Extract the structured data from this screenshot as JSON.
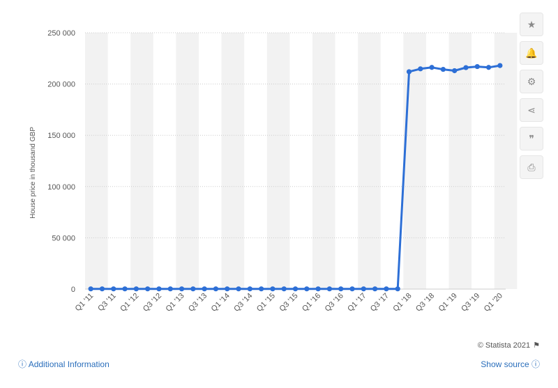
{
  "chart_data": {
    "type": "line",
    "ylabel": "House price in thousand GBP",
    "xlabel": "",
    "ylim": [
      0,
      250000
    ],
    "yticks": [
      0,
      50000,
      100000,
      150000,
      200000,
      250000
    ],
    "ytick_labels": [
      "0",
      "50 000",
      "100 000",
      "150 000",
      "200 000",
      "250 000"
    ],
    "categories": [
      "Q1 '11",
      "Q2 '11",
      "Q3 '11",
      "Q4 '11",
      "Q1 '12",
      "Q2 '12",
      "Q3 '12",
      "Q4 '12",
      "Q1 '13",
      "Q2 '13",
      "Q3 '13",
      "Q4 '13",
      "Q1 '14",
      "Q2 '14",
      "Q3 '14",
      "Q4 '14",
      "Q1 '15",
      "Q2 '15",
      "Q3 '15",
      "Q4 '15",
      "Q1 '16",
      "Q2 '16",
      "Q3 '16",
      "Q4 '16",
      "Q1 '17",
      "Q2 '17",
      "Q3 '17",
      "Q4 '17",
      "Q1 '18",
      "Q2 '18",
      "Q3 '18",
      "Q4 '18",
      "Q1 '19",
      "Q2 '19",
      "Q3 '19",
      "Q4 '19",
      "Q1 '20"
    ],
    "xtick_labels": [
      "Q1 '11",
      "Q3 '11",
      "Q1 '12",
      "Q3 '12",
      "Q1 '13",
      "Q3 '13",
      "Q1 '14",
      "Q3 '14",
      "Q1 '15",
      "Q3 '15",
      "Q1 '16",
      "Q3 '16",
      "Q1 '17",
      "Q3 '17",
      "Q1 '18",
      "Q3 '18",
      "Q1 '19",
      "Q3 '19",
      "Q1 '20"
    ],
    "series": [
      {
        "values": [
          200,
          200,
          200,
          200,
          200,
          200,
          200,
          200,
          200,
          200,
          200,
          200,
          200,
          200,
          200,
          200,
          200,
          200,
          200,
          200,
          200,
          200,
          200,
          200,
          200,
          200,
          200,
          200,
          212000,
          214800,
          216200,
          214300,
          213000,
          216000,
          217000,
          216200,
          218000
        ]
      }
    ],
    "grid": true,
    "colors": {
      "line": "#2d6fd6",
      "band": "#f2f2f2",
      "grid": "#cccccc"
    }
  },
  "toolbar": {
    "icons": [
      "star-icon",
      "bell-icon",
      "gear-icon",
      "share-icon",
      "quote-icon",
      "print-icon"
    ],
    "glyphs": [
      "★",
      "🔔",
      "⚙",
      "⋖",
      "❞",
      "⎙"
    ]
  },
  "footer": {
    "additional_info": "Additional Information",
    "show_source": "Show source",
    "credit": "© Statista 2021"
  }
}
